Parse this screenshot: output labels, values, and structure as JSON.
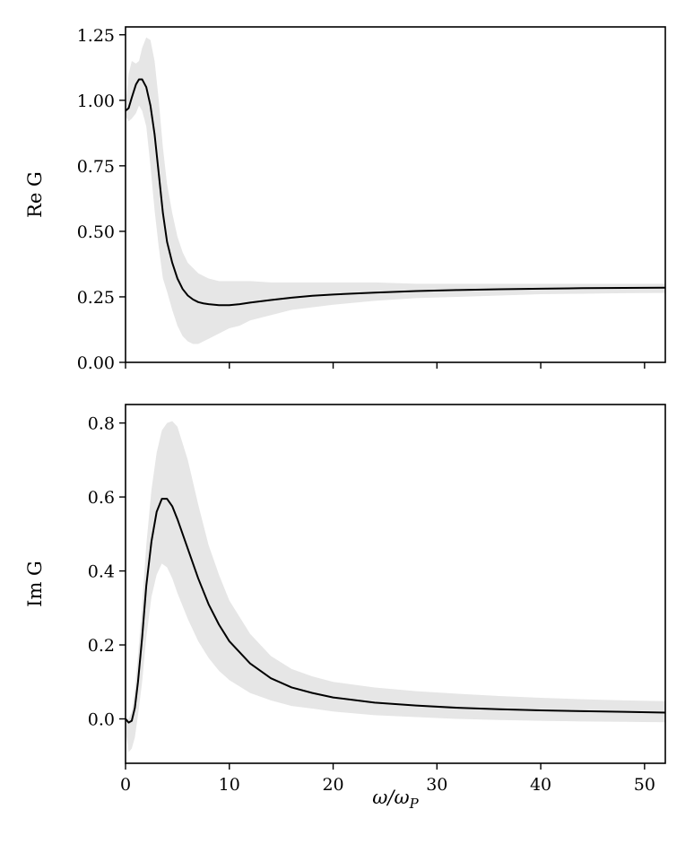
{
  "chart_data": [
    {
      "type": "line",
      "panel": "top",
      "ylabel": "Re G",
      "xlabel": "",
      "xlim": [
        0,
        52
      ],
      "ylim": [
        0,
        1.28
      ],
      "xticks": [
        0,
        10,
        20,
        30,
        40,
        50
      ],
      "show_xtick_labels": false,
      "yticks": [
        0.0,
        0.25,
        0.5,
        0.75,
        1.0,
        1.25
      ],
      "ytick_labels": [
        "0.00",
        "0.25",
        "0.50",
        "0.75",
        "1.00",
        "1.25"
      ],
      "grid": false,
      "series": [
        {
          "style": "line",
          "color": "#000000",
          "x": [
            0.0,
            0.3,
            0.6,
            1.0,
            1.3,
            1.6,
            2.0,
            2.4,
            2.8,
            3.2,
            3.6,
            4.0,
            4.5,
            5.0,
            5.5,
            6.0,
            6.5,
            7.0,
            7.5,
            8.0,
            9.0,
            10.0,
            11.0,
            12.0,
            14.0,
            16.0,
            18.0,
            20.0,
            24.0,
            28.0,
            32.0,
            36.0,
            40.0,
            44.0,
            48.0,
            52.0
          ],
          "y": [
            0.96,
            0.97,
            1.01,
            1.06,
            1.08,
            1.08,
            1.05,
            0.98,
            0.87,
            0.72,
            0.57,
            0.46,
            0.38,
            0.32,
            0.28,
            0.255,
            0.24,
            0.23,
            0.225,
            0.222,
            0.218,
            0.218,
            0.222,
            0.228,
            0.238,
            0.247,
            0.254,
            0.259,
            0.266,
            0.272,
            0.276,
            0.279,
            0.281,
            0.283,
            0.284,
            0.285
          ]
        },
        {
          "style": "band",
          "color": "#e6e6e6",
          "x": [
            0.0,
            0.3,
            0.6,
            1.0,
            1.3,
            1.6,
            2.0,
            2.4,
            2.8,
            3.2,
            3.6,
            4.0,
            4.5,
            5.0,
            5.5,
            6.0,
            6.5,
            7.0,
            7.5,
            8.0,
            9.0,
            10.0,
            11.0,
            12.0,
            14.0,
            16.0,
            18.0,
            20.0,
            24.0,
            28.0,
            32.0,
            36.0,
            40.0,
            44.0,
            48.0,
            52.0
          ],
          "upper": [
            0.98,
            1.1,
            1.15,
            1.14,
            1.15,
            1.2,
            1.24,
            1.23,
            1.15,
            1.0,
            0.82,
            0.68,
            0.57,
            0.48,
            0.42,
            0.38,
            0.36,
            0.34,
            0.33,
            0.32,
            0.31,
            0.31,
            0.31,
            0.31,
            0.305,
            0.305,
            0.305,
            0.305,
            0.305,
            0.3,
            0.3,
            0.3,
            0.3,
            0.3,
            0.3,
            0.3
          ],
          "lower": [
            0.94,
            0.92,
            0.93,
            0.95,
            0.98,
            0.96,
            0.9,
            0.75,
            0.58,
            0.44,
            0.32,
            0.27,
            0.2,
            0.14,
            0.1,
            0.08,
            0.07,
            0.07,
            0.08,
            0.09,
            0.11,
            0.13,
            0.14,
            0.16,
            0.18,
            0.2,
            0.21,
            0.22,
            0.235,
            0.245,
            0.25,
            0.255,
            0.26,
            0.262,
            0.264,
            0.265
          ]
        }
      ]
    },
    {
      "type": "line",
      "panel": "bottom",
      "ylabel": "Im G",
      "xlabel": "ω/ω_P",
      "xlim": [
        0,
        52
      ],
      "ylim": [
        -0.12,
        0.85
      ],
      "xticks": [
        0,
        10,
        20,
        30,
        40,
        50
      ],
      "xtick_labels": [
        "0",
        "10",
        "20",
        "30",
        "40",
        "50"
      ],
      "show_xtick_labels": true,
      "yticks": [
        0.0,
        0.2,
        0.4,
        0.6,
        0.8
      ],
      "ytick_labels": [
        "0.0",
        "0.2",
        "0.4",
        "0.6",
        "0.8"
      ],
      "grid": false,
      "series": [
        {
          "style": "line",
          "color": "#000000",
          "x": [
            0.0,
            0.3,
            0.6,
            0.9,
            1.2,
            1.6,
            2.0,
            2.5,
            3.0,
            3.5,
            4.0,
            4.5,
            5.0,
            6.0,
            7.0,
            8.0,
            9.0,
            10.0,
            12.0,
            14.0,
            16.0,
            18.0,
            20.0,
            24.0,
            28.0,
            32.0,
            36.0,
            40.0,
            44.0,
            48.0,
            52.0
          ],
          "y": [
            0.0,
            -0.01,
            -0.005,
            0.03,
            0.1,
            0.22,
            0.36,
            0.48,
            0.56,
            0.595,
            0.595,
            0.575,
            0.54,
            0.46,
            0.38,
            0.31,
            0.255,
            0.21,
            0.15,
            0.11,
            0.085,
            0.07,
            0.058,
            0.044,
            0.036,
            0.03,
            0.026,
            0.023,
            0.021,
            0.019,
            0.017
          ]
        },
        {
          "style": "band",
          "color": "#e6e6e6",
          "x": [
            0.0,
            0.3,
            0.6,
            0.9,
            1.2,
            1.6,
            2.0,
            2.5,
            3.0,
            3.5,
            4.0,
            4.5,
            5.0,
            6.0,
            7.0,
            8.0,
            9.0,
            10.0,
            12.0,
            14.0,
            16.0,
            18.0,
            20.0,
            24.0,
            28.0,
            32.0,
            36.0,
            40.0,
            44.0,
            48.0,
            52.0
          ],
          "upper": [
            0.0,
            0.0,
            0.02,
            0.08,
            0.17,
            0.31,
            0.47,
            0.62,
            0.72,
            0.78,
            0.8,
            0.805,
            0.79,
            0.7,
            0.58,
            0.47,
            0.39,
            0.32,
            0.23,
            0.17,
            0.135,
            0.115,
            0.1,
            0.085,
            0.075,
            0.068,
            0.062,
            0.057,
            0.053,
            0.05,
            0.048
          ],
          "lower": [
            -0.03,
            -0.09,
            -0.08,
            -0.05,
            0.01,
            0.1,
            0.22,
            0.33,
            0.39,
            0.42,
            0.41,
            0.38,
            0.34,
            0.27,
            0.21,
            0.165,
            0.13,
            0.105,
            0.07,
            0.05,
            0.035,
            0.028,
            0.02,
            0.01,
            0.005,
            0.0,
            -0.003,
            -0.005,
            -0.007,
            -0.008,
            -0.009
          ]
        }
      ]
    }
  ]
}
